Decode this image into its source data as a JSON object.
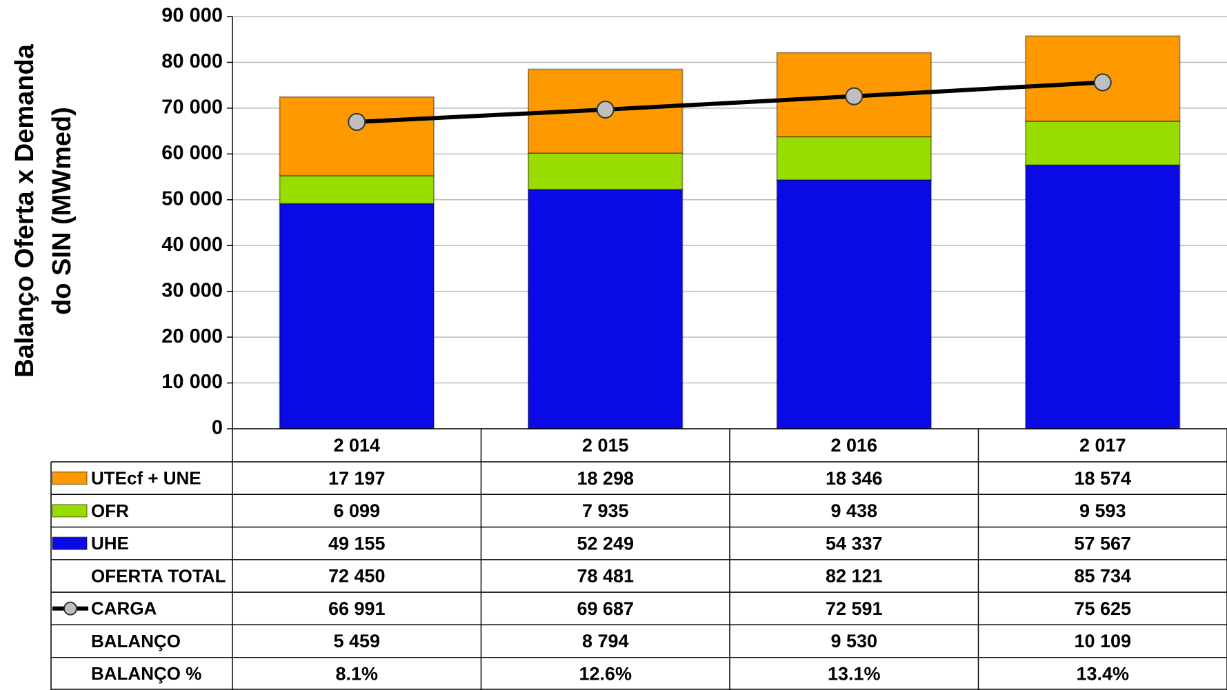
{
  "chart_data": {
    "type": "bar",
    "stacked": true,
    "y_label": [
      "Balanço Oferta x Demanda",
      "do SIN (MWmed)"
    ],
    "categories": [
      "2 014",
      "2 015",
      "2 016",
      "2 017"
    ],
    "series": [
      {
        "name": "UTEcf + UNE",
        "color": "#ff9900",
        "values": [
          17197,
          18298,
          18346,
          18574
        ],
        "value_labels": [
          "17 197",
          "18 298",
          "18 346",
          "18 574"
        ]
      },
      {
        "name": "OFR",
        "color": "#99dd00",
        "values": [
          6099,
          7935,
          9438,
          9593
        ],
        "value_labels": [
          "6 099",
          "7 935",
          "9 438",
          "9 593"
        ]
      },
      {
        "name": "UHE",
        "color": "#0a0ae6",
        "values": [
          49155,
          52249,
          54337,
          57567
        ],
        "value_labels": [
          "49 155",
          "52 249",
          "54 337",
          "57 567"
        ]
      },
      {
        "name": "CARGA",
        "type": "line",
        "color": "#000000",
        "marker_color": "#bfbfbf",
        "values": [
          66991,
          69687,
          72591,
          75625
        ],
        "value_labels": [
          "66 991",
          "69 687",
          "72 591",
          "75 625"
        ]
      }
    ],
    "table_rows": [
      {
        "name": "OFERTA TOTAL",
        "values": [
          72450,
          78481,
          82121,
          85734
        ],
        "value_labels": [
          "72 450",
          "78 481",
          "82 121",
          "85 734"
        ]
      },
      {
        "name": "BALANÇO",
        "values": [
          5459,
          8794,
          9530,
          10109
        ],
        "value_labels": [
          "5 459",
          "8 794",
          "9 530",
          "10 109"
        ]
      },
      {
        "name": "BALANÇO %",
        "values": [
          8.1,
          12.6,
          13.1,
          13.4
        ],
        "value_labels": [
          "8.1%",
          "12.6%",
          "13.1%",
          "13.4%"
        ]
      }
    ],
    "ylim": [
      0,
      90000
    ],
    "yticks": [
      0,
      {
        "value": 10000,
        "label": "10 000"
      },
      {
        "value": 20000,
        "label": "20 000"
      },
      {
        "value": 30000,
        "label": "30 000"
      },
      {
        "value": 40000,
        "label": "40 000"
      },
      {
        "value": 50000,
        "label": "50 000"
      },
      {
        "value": 60000,
        "label": "60 000"
      },
      {
        "value": 70000,
        "label": "70 000"
      },
      {
        "value": 80000,
        "label": "80 000"
      },
      {
        "value": 90000,
        "label": "90 000"
      }
    ],
    "grid": true
  }
}
